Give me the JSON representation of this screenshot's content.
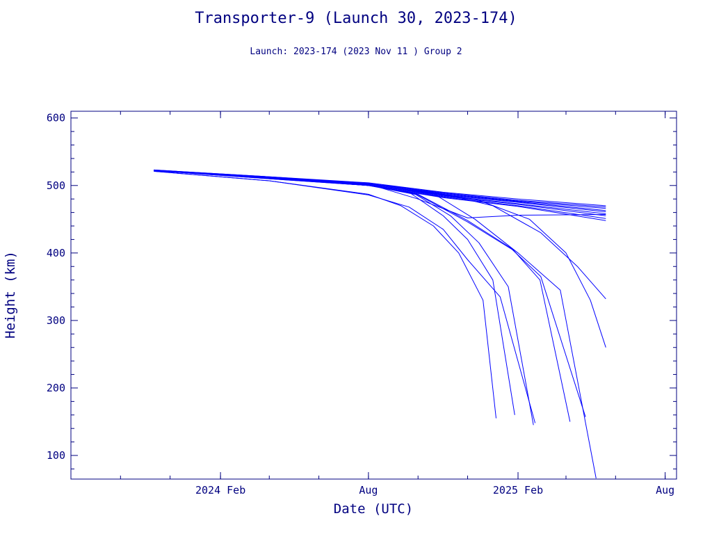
{
  "chart_data": {
    "type": "line",
    "title": "Transporter-9 (Launch 30, 2023-174)",
    "subtitle": "Launch: 2023-174  (2023 Nov 11 )  Group 2",
    "xlabel": "Date (UTC)",
    "ylabel": "Height (km)",
    "xlim": [
      "2023-08-01",
      "2025-08-15"
    ],
    "ylim": [
      65,
      610
    ],
    "x_ticks": [
      {
        "date": "2024-02-01",
        "label": "2024 Feb"
      },
      {
        "date": "2024-08-01",
        "label": "Aug"
      },
      {
        "date": "2025-02-01",
        "label": "2025 Feb"
      },
      {
        "date": "2025-08-01",
        "label": "Aug"
      }
    ],
    "y_ticks": [
      100,
      200,
      300,
      400,
      500,
      600
    ],
    "grid": false,
    "line_color": "#0000ff",
    "axis_color": "#000080",
    "series": [
      {
        "x": [
          "2023-11-11",
          "2024-04-01",
          "2024-08-01",
          "2024-11-01",
          "2025-02-01",
          "2025-05-20"
        ],
        "y": [
          523,
          513,
          504,
          490,
          480,
          470
        ]
      },
      {
        "x": [
          "2023-11-11",
          "2024-04-01",
          "2024-08-01",
          "2024-11-01",
          "2025-02-01",
          "2025-05-20"
        ],
        "y": [
          523,
          513,
          503,
          489,
          478,
          468
        ]
      },
      {
        "x": [
          "2023-11-11",
          "2024-04-01",
          "2024-08-01",
          "2024-11-01",
          "2025-02-01",
          "2025-05-20"
        ],
        "y": [
          522,
          512,
          503,
          488,
          477,
          466
        ]
      },
      {
        "x": [
          "2023-11-11",
          "2024-04-01",
          "2024-08-01",
          "2024-11-01",
          "2025-02-01",
          "2025-05-20"
        ],
        "y": [
          522,
          512,
          502,
          487,
          476,
          463
        ]
      },
      {
        "x": [
          "2023-11-11",
          "2024-04-01",
          "2024-08-01",
          "2024-11-01",
          "2025-02-01",
          "2025-05-20"
        ],
        "y": [
          522,
          511,
          502,
          486,
          475,
          461
        ]
      },
      {
        "x": [
          "2023-11-11",
          "2024-04-01",
          "2024-08-01",
          "2024-11-01",
          "2025-02-01",
          "2025-05-20"
        ],
        "y": [
          522,
          511,
          501,
          485,
          473,
          458
        ]
      },
      {
        "x": [
          "2023-11-11",
          "2024-04-01",
          "2024-08-01",
          "2024-11-01",
          "2025-02-01",
          "2025-05-20"
        ],
        "y": [
          522,
          511,
          501,
          484,
          472,
          455
        ]
      },
      {
        "x": [
          "2023-11-11",
          "2024-04-01",
          "2024-08-01",
          "2024-11-01",
          "2025-02-01",
          "2025-05-20"
        ],
        "y": [
          522,
          510,
          500,
          483,
          470,
          451
        ]
      },
      {
        "x": [
          "2023-11-11",
          "2024-04-01",
          "2024-08-01",
          "2024-11-01",
          "2025-02-01",
          "2025-05-20"
        ],
        "y": [
          522,
          510,
          500,
          482,
          469,
          448
        ]
      },
      {
        "x": [
          "2023-11-11",
          "2024-04-01",
          "2024-08-01",
          "2024-10-01",
          "2024-12-01",
          "2025-02-01",
          "2025-05-20"
        ],
        "y": [
          522,
          512,
          502,
          480,
          452,
          456,
          457
        ]
      },
      {
        "x": [
          "2023-11-11",
          "2024-04-01",
          "2024-09-01",
          "2024-11-20",
          "2025-01-01",
          "2025-03-01",
          "2025-04-15",
          "2025-05-20"
        ],
        "y": [
          522,
          512,
          499,
          482,
          470,
          430,
          380,
          332
        ]
      },
      {
        "x": [
          "2023-11-11",
          "2024-04-01",
          "2024-09-01",
          "2024-12-15",
          "2025-02-15",
          "2025-04-01",
          "2025-05-01",
          "2025-05-20"
        ],
        "y": [
          522,
          512,
          499,
          478,
          450,
          400,
          330,
          260
        ]
      },
      {
        "x": [
          "2023-11-11",
          "2024-04-01",
          "2024-08-01",
          "2024-09-20",
          "2024-11-01",
          "2024-12-01",
          "2025-01-01",
          "2025-01-28"
        ],
        "y": [
          522,
          511,
          500,
          490,
          455,
          420,
          360,
          160
        ]
      },
      {
        "x": [
          "2023-11-11",
          "2024-04-01",
          "2024-08-01",
          "2024-09-25",
          "2024-11-10",
          "2024-12-15",
          "2025-01-20",
          "2025-02-20"
        ],
        "y": [
          522,
          511,
          500,
          489,
          455,
          415,
          350,
          145
        ]
      },
      {
        "x": [
          "2023-11-11",
          "2024-04-01",
          "2024-08-01",
          "2024-10-01",
          "2024-12-01",
          "2025-01-25",
          "2025-02-28",
          "2025-04-06"
        ],
        "y": [
          522,
          511,
          500,
          487,
          448,
          406,
          360,
          150
        ]
      },
      {
        "x": [
          "2023-11-11",
          "2024-04-01",
          "2024-08-01",
          "2024-10-01",
          "2024-12-01",
          "2025-01-25",
          "2025-03-01",
          "2025-04-25"
        ],
        "y": [
          522,
          511,
          500,
          486,
          446,
          405,
          365,
          157
        ]
      },
      {
        "x": [
          "2023-11-11",
          "2024-04-01",
          "2024-08-01",
          "2024-10-20",
          "2024-12-10",
          "2025-02-01",
          "2025-03-25",
          "2025-05-08"
        ],
        "y": [
          522,
          511,
          500,
          488,
          450,
          400,
          345,
          66
        ]
      },
      {
        "x": [
          "2023-11-11",
          "2024-04-01",
          "2024-08-01",
          "2024-09-10",
          "2024-10-20",
          "2024-11-20",
          "2024-12-20",
          "2025-01-05"
        ],
        "y": [
          521,
          507,
          487,
          470,
          440,
          400,
          330,
          155
        ]
      },
      {
        "x": [
          "2023-11-11",
          "2024-04-01",
          "2024-08-01",
          "2024-09-20",
          "2024-11-01",
          "2024-12-01",
          "2025-01-10",
          "2025-02-22"
        ],
        "y": [
          521,
          507,
          486,
          468,
          435,
          390,
          335,
          148
        ]
      }
    ]
  }
}
